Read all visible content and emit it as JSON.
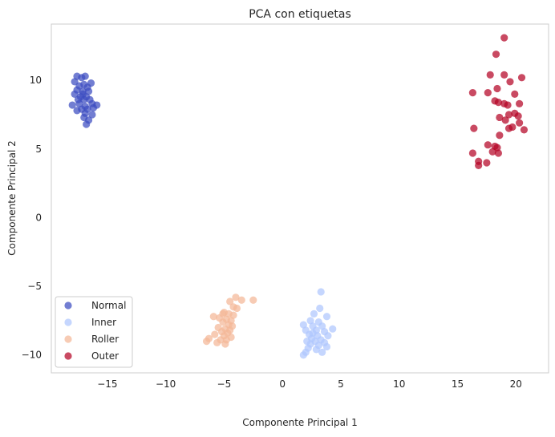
{
  "chart_data": {
    "type": "scatter",
    "title": "PCA con etiquetas",
    "xlabel": "Componente Principal 1",
    "ylabel": "Componente Principal 2",
    "xlim": [
      -19.8,
      22.8
    ],
    "ylim": [
      -11.3,
      14.1
    ],
    "xticks": [
      -15,
      -10,
      -5,
      0,
      5,
      10,
      15,
      20
    ],
    "yticks": [
      -10,
      -5,
      0,
      5,
      10
    ],
    "grid": false,
    "legend_position": "lower left",
    "series": [
      {
        "name": "Normal",
        "color": "#3b4cc0",
        "points": [
          [
            -17.8,
            9.9
          ],
          [
            -17.6,
            10.3
          ],
          [
            -17.2,
            10.2
          ],
          [
            -16.9,
            10.3
          ],
          [
            -17.4,
            9.6
          ],
          [
            -17.0,
            9.7
          ],
          [
            -16.7,
            9.5
          ],
          [
            -17.6,
            9.3
          ],
          [
            -17.1,
            9.2
          ],
          [
            -16.6,
            9.2
          ],
          [
            -17.8,
            9.0
          ],
          [
            -17.3,
            8.8
          ],
          [
            -16.8,
            8.8
          ],
          [
            -17.5,
            8.6
          ],
          [
            -17.0,
            8.6
          ],
          [
            -16.5,
            8.6
          ],
          [
            -18.0,
            8.2
          ],
          [
            -17.4,
            8.3
          ],
          [
            -16.9,
            8.1
          ],
          [
            -16.3,
            8.3
          ],
          [
            -15.9,
            8.2
          ],
          [
            -17.2,
            7.9
          ],
          [
            -16.7,
            7.9
          ],
          [
            -16.2,
            8.0
          ],
          [
            -17.6,
            7.8
          ],
          [
            -16.9,
            7.6
          ],
          [
            -16.3,
            7.5
          ],
          [
            -17.0,
            7.3
          ],
          [
            -16.6,
            7.1
          ],
          [
            -16.8,
            6.8
          ],
          [
            -17.1,
            9.0
          ],
          [
            -16.4,
            9.8
          ]
        ]
      },
      {
        "name": "Inner",
        "color": "#aec6fd",
        "points": [
          [
            3.3,
            -5.4
          ],
          [
            3.2,
            -6.6
          ],
          [
            2.7,
            -7.0
          ],
          [
            3.8,
            -7.2
          ],
          [
            2.4,
            -7.5
          ],
          [
            3.1,
            -7.6
          ],
          [
            1.8,
            -7.8
          ],
          [
            2.6,
            -7.9
          ],
          [
            3.4,
            -7.9
          ],
          [
            4.3,
            -8.1
          ],
          [
            2.0,
            -8.2
          ],
          [
            2.9,
            -8.2
          ],
          [
            3.6,
            -8.3
          ],
          [
            2.3,
            -8.5
          ],
          [
            3.0,
            -8.6
          ],
          [
            3.9,
            -8.6
          ],
          [
            2.5,
            -8.8
          ],
          [
            3.3,
            -8.9
          ],
          [
            2.1,
            -9.0
          ],
          [
            2.8,
            -9.0
          ],
          [
            3.6,
            -9.1
          ],
          [
            2.4,
            -9.2
          ],
          [
            3.1,
            -9.3
          ],
          [
            3.8,
            -9.4
          ],
          [
            2.2,
            -9.5
          ],
          [
            2.9,
            -9.6
          ],
          [
            3.4,
            -9.8
          ],
          [
            2.0,
            -9.8
          ],
          [
            1.8,
            -10.0
          ],
          [
            2.6,
            -8.4
          ]
        ]
      },
      {
        "name": "Roller",
        "color": "#f4b797",
        "points": [
          [
            -4.0,
            -5.8
          ],
          [
            -3.5,
            -6.0
          ],
          [
            -2.5,
            -6.0
          ],
          [
            -4.5,
            -6.1
          ],
          [
            -4.2,
            -6.5
          ],
          [
            -3.9,
            -6.6
          ],
          [
            -5.0,
            -6.9
          ],
          [
            -4.6,
            -7.0
          ],
          [
            -4.2,
            -7.1
          ],
          [
            -5.9,
            -7.2
          ],
          [
            -5.4,
            -7.3
          ],
          [
            -4.8,
            -7.4
          ],
          [
            -4.4,
            -7.5
          ],
          [
            -5.1,
            -7.6
          ],
          [
            -4.6,
            -7.8
          ],
          [
            -4.3,
            -7.9
          ],
          [
            -5.5,
            -8.0
          ],
          [
            -4.9,
            -8.1
          ],
          [
            -4.5,
            -8.2
          ],
          [
            -5.2,
            -8.3
          ],
          [
            -4.7,
            -8.4
          ],
          [
            -5.8,
            -8.5
          ],
          [
            -5.0,
            -8.6
          ],
          [
            -4.4,
            -8.7
          ],
          [
            -6.3,
            -8.8
          ],
          [
            -5.3,
            -8.9
          ],
          [
            -4.8,
            -8.9
          ],
          [
            -6.5,
            -9.0
          ],
          [
            -5.6,
            -9.1
          ],
          [
            -4.9,
            -9.2
          ],
          [
            -5.1,
            -7.0
          ]
        ]
      },
      {
        "name": "Outer",
        "color": "#b40426",
        "points": [
          [
            19.0,
            13.1
          ],
          [
            18.3,
            11.9
          ],
          [
            17.8,
            10.4
          ],
          [
            19.0,
            10.4
          ],
          [
            20.5,
            10.2
          ],
          [
            19.5,
            9.9
          ],
          [
            18.4,
            9.4
          ],
          [
            16.3,
            9.1
          ],
          [
            17.6,
            9.1
          ],
          [
            19.9,
            9.0
          ],
          [
            18.5,
            8.4
          ],
          [
            18.2,
            8.5
          ],
          [
            19.0,
            8.3
          ],
          [
            19.3,
            8.2
          ],
          [
            20.3,
            8.3
          ],
          [
            19.9,
            7.6
          ],
          [
            19.4,
            7.5
          ],
          [
            18.6,
            7.3
          ],
          [
            20.2,
            7.4
          ],
          [
            19.1,
            7.1
          ],
          [
            20.3,
            6.9
          ],
          [
            19.7,
            6.6
          ],
          [
            19.4,
            6.5
          ],
          [
            20.7,
            6.4
          ],
          [
            16.4,
            6.5
          ],
          [
            18.6,
            6.0
          ],
          [
            17.6,
            5.3
          ],
          [
            18.2,
            5.2
          ],
          [
            18.4,
            5.1
          ],
          [
            16.3,
            4.7
          ],
          [
            18.0,
            4.8
          ],
          [
            18.5,
            4.7
          ],
          [
            16.8,
            4.1
          ],
          [
            17.5,
            4.0
          ],
          [
            16.8,
            3.8
          ]
        ]
      }
    ]
  }
}
